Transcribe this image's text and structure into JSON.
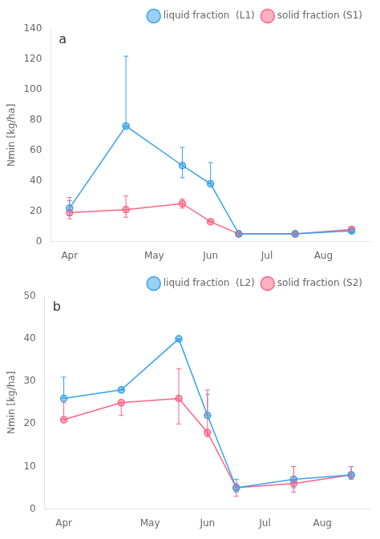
{
  "chart_data": [
    {
      "type": "line",
      "annotation": "a",
      "ylabel": "Nmin [kg/ha]",
      "x": [
        0,
        30,
        60,
        75,
        90,
        120,
        150
      ],
      "xlim": [
        -10,
        160
      ],
      "xticks": [
        {
          "value": 0,
          "label": "Apr"
        },
        {
          "value": 45,
          "label": "May"
        },
        {
          "value": 75,
          "label": "Jun"
        },
        {
          "value": 105,
          "label": "Jul"
        },
        {
          "value": 135,
          "label": "Aug"
        }
      ],
      "ylim": [
        0,
        140
      ],
      "yticks": [
        0,
        20,
        40,
        60,
        80,
        100,
        120,
        140
      ],
      "grid": false,
      "legend": "upper right",
      "series": [
        {
          "name": "liquid fraction  (L1)",
          "marker": "circle",
          "values": [
            22,
            76,
            50,
            38,
            5,
            5,
            7
          ],
          "yerr_lo": [
            5,
            0,
            8,
            0,
            1,
            1,
            1
          ],
          "yerr_hi": [
            5,
            46,
            12,
            14,
            1,
            1,
            1
          ]
        },
        {
          "name": "solid fraction (S1)",
          "marker": "circle",
          "values": [
            19,
            21,
            25,
            13,
            5,
            5,
            8
          ],
          "yerr_lo": [
            4,
            5,
            3,
            0,
            1,
            1,
            1
          ],
          "yerr_hi": [
            10,
            9,
            3,
            0,
            1,
            1,
            1
          ]
        }
      ]
    },
    {
      "type": "line",
      "annotation": "b",
      "ylabel": "Nmin [kg/ha]",
      "x": [
        0,
        30,
        60,
        75,
        90,
        120,
        150
      ],
      "xlim": [
        -10,
        160
      ],
      "xticks": [
        {
          "value": 0,
          "label": "Apr"
        },
        {
          "value": 45,
          "label": "May"
        },
        {
          "value": 75,
          "label": "Jun"
        },
        {
          "value": 105,
          "label": "Jul"
        },
        {
          "value": 135,
          "label": "Aug"
        }
      ],
      "ylim": [
        0,
        50
      ],
      "yticks": [
        0,
        10,
        20,
        30,
        40,
        50
      ],
      "grid": false,
      "legend": "upper right",
      "series": [
        {
          "name": "liquid fraction  (L2)",
          "marker": "circle",
          "values": [
            26,
            28,
            40,
            22,
            5,
            7,
            8
          ],
          "yerr_lo": [
            0,
            0,
            0,
            0,
            1,
            2,
            1
          ],
          "yerr_hi": [
            5,
            0,
            0,
            5,
            2,
            3,
            2
          ]
        },
        {
          "name": "solid fraction (S2)",
          "marker": "circle",
          "values": [
            21,
            25,
            26,
            18,
            5,
            6,
            8
          ],
          "yerr_lo": [
            0,
            3,
            6,
            1,
            2,
            2,
            1
          ],
          "yerr_hi": [
            4,
            0,
            7,
            10,
            1,
            4,
            2
          ]
        }
      ]
    }
  ]
}
